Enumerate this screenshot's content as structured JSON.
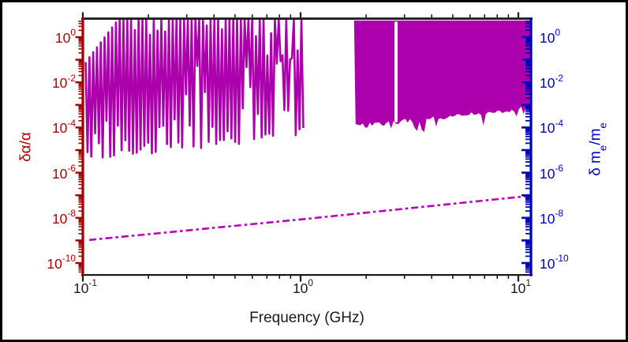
{
  "chart_data": {
    "type": "area",
    "title": "",
    "description": "Log-log sensitivity plot: magenta comb/band exclusion regions and a magenta dash-dot projection line, dual y-axes",
    "x": {
      "label": "Frequency (GHz)",
      "scale": "log",
      "range_ghz": [
        0.1,
        11.4
      ],
      "tick_exponents": [
        -1,
        0,
        1
      ],
      "axis_color": "#1a1a1a"
    },
    "y_left": {
      "label": "δα/α",
      "scale": "log",
      "range": [
        3.2e-11,
        5.9
      ],
      "tick_exponents": [
        0,
        -2,
        -4,
        -6,
        -8,
        -10
      ],
      "axis_color": "#a00000",
      "label_color": "#b00000"
    },
    "y_right": {
      "label": "δ mₑ/mₑ",
      "label_parts": {
        "pre": "δ m",
        "sub1": "e",
        "mid": "/m",
        "sub2": "e"
      },
      "scale": "log",
      "range": [
        3.2e-11,
        5.9
      ],
      "tick_exponents": [
        0,
        -2,
        -4,
        -6,
        -8,
        -10
      ],
      "axis_color": "#0000b8",
      "label_color": "#0000cd"
    },
    "series": [
      {
        "name": "comb-exclusion-band",
        "type": "comb",
        "color": "#ad00ad",
        "f_start_ghz": 0.103,
        "f_end_ghz": 1.05,
        "peak_value": 5.9,
        "dip_floor_start": 3.2e-06,
        "dip_floor_end": 2.8e-05,
        "cycles": 58,
        "dip_spread_decades": 1.8,
        "shallow_dip_fraction": 0.2,
        "seed": 1337
      },
      {
        "name": "solid-exclusion-band",
        "type": "filled-band",
        "color": "#ad00ad",
        "f_start_ghz": 1.76,
        "f_end_ghz": 11.4,
        "top_value": 5.9,
        "bottom_edge_start": 0.00011,
        "bottom_edge_end": 0.00075,
        "noise_decades": 0.22,
        "notch_f_ghz": [
          2.7,
          2.79
        ],
        "seed": 77
      },
      {
        "name": "projected-limit-line",
        "type": "dash-dot-line",
        "color": "#bb00bb",
        "width": 2.6,
        "points_f_value": [
          [
            0.107,
            1.05e-09
          ],
          [
            1.0,
            8.5e-09
          ],
          [
            11.4,
            9.5e-08
          ]
        ]
      }
    ]
  }
}
